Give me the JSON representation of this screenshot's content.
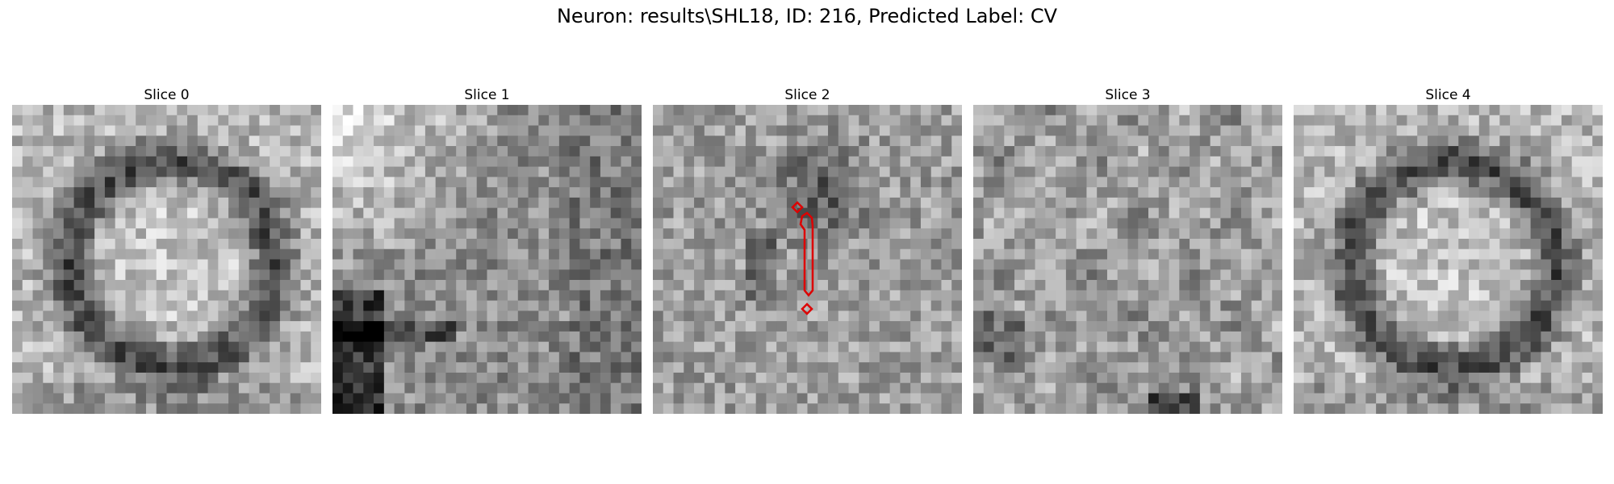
{
  "figure": {
    "title": "Neuron: results\\SHL18, ID: 216, Predicted Label: CV",
    "colormap": "gray",
    "annotation_color": "#dd0000"
  },
  "panels": [
    {
      "title": "Slice 0",
      "pattern": "ring"
    },
    {
      "title": "Slice 1",
      "pattern": "bright-top-left"
    },
    {
      "title": "Slice 2",
      "pattern": "noisy-dark-center",
      "annotated": true
    },
    {
      "title": "Slice 3",
      "pattern": "noisy-mottled"
    },
    {
      "title": "Slice 4",
      "pattern": "ring"
    }
  ]
}
